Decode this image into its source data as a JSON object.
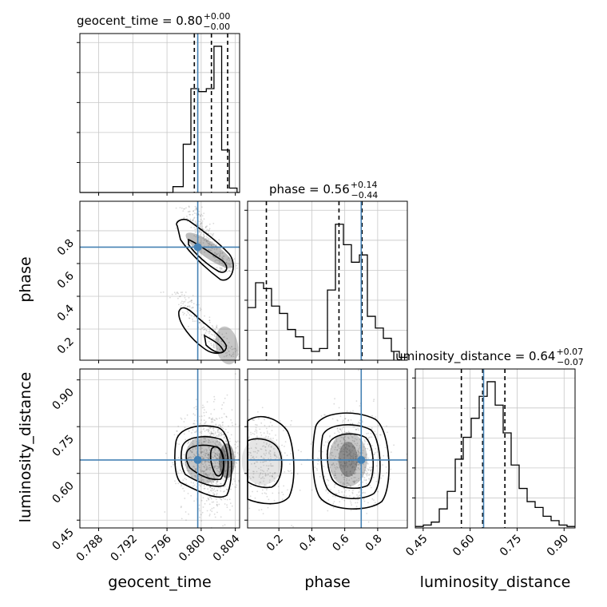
{
  "chart_data": {
    "type": "corner",
    "parameters": [
      "geocent_time",
      "phase",
      "luminosity_distance"
    ],
    "truths": {
      "geocent_time": 0.7996,
      "phase": 0.7,
      "luminosity_distance": 0.643
    },
    "titles": [
      {
        "param": "geocent_time",
        "main": "geocent_time = 0.80",
        "plus": "+0.00",
        "minus": "−0.00"
      },
      {
        "param": "phase",
        "main": "phase = 0.56",
        "plus": "+0.14",
        "minus": "−0.44"
      },
      {
        "param": "luminosity_distance",
        "main": "luminosity_distance = 0.64",
        "plus": "+0.07",
        "minus": "−0.07"
      }
    ],
    "xlabels": [
      "geocent_time",
      "phase",
      "luminosity_distance"
    ],
    "ylabels": [
      "phase",
      "luminosity_distance"
    ],
    "ranges": {
      "geocent_time": [
        0.7858,
        0.8045
      ],
      "phase": [
        0.01,
        0.98
      ],
      "luminosity_distance": [
        0.425,
        0.935
      ]
    },
    "ticks": {
      "geocent_time": {
        "values": [
          0.788,
          0.792,
          0.796,
          0.8,
          0.804
        ],
        "labels": [
          "0.788",
          "0.792",
          "0.796",
          "0.800",
          "0.804"
        ]
      },
      "phase": {
        "values": [
          0.2,
          0.4,
          0.6,
          0.8
        ],
        "labels": [
          "0.2",
          "0.4",
          "0.6",
          "0.8"
        ]
      },
      "luminosity_distance": {
        "values": [
          0.45,
          0.6,
          0.75,
          0.9
        ],
        "labels": [
          "0.45",
          "0.60",
          "0.75",
          "0.90"
        ]
      }
    },
    "quantiles": {
      "geocent_time": [
        0.7992,
        0.8012,
        0.8031
      ],
      "phase": [
        0.124,
        0.565,
        0.705
      ],
      "luminosity_distance": [
        0.572,
        0.64,
        0.711
      ]
    },
    "histograms": {
      "geocent_time": {
        "edges": [
          0.7858,
          0.7967,
          0.7979,
          0.7988,
          0.7997,
          0.8006,
          0.8015,
          0.8024,
          0.8033,
          0.8042,
          0.8045
        ],
        "counts": [
          0,
          0.04,
          0.33,
          0.71,
          0.69,
          0.71,
          1.0,
          0.29,
          0.03,
          0
        ]
      },
      "phase": {
        "edges": [
          0.01,
          0.0585,
          0.107,
          0.1555,
          0.204,
          0.2525,
          0.301,
          0.3495,
          0.398,
          0.4465,
          0.495,
          0.5435,
          0.592,
          0.6405,
          0.689,
          0.7375,
          0.786,
          0.8345,
          0.883,
          0.9315,
          0.98
        ],
        "counts": [
          0.36,
          0.53,
          0.49,
          0.37,
          0.32,
          0.21,
          0.16,
          0.08,
          0.06,
          0.08,
          0.48,
          0.93,
          0.79,
          0.67,
          0.72,
          0.3,
          0.22,
          0.15,
          0.06,
          0.02
        ]
      },
      "luminosity_distance": {
        "edges": [
          0.425,
          0.4505,
          0.476,
          0.5015,
          0.527,
          0.5525,
          0.578,
          0.6035,
          0.629,
          0.6545,
          0.68,
          0.7055,
          0.731,
          0.7565,
          0.782,
          0.8075,
          0.833,
          0.8585,
          0.884,
          0.9095,
          0.935
        ],
        "counts": [
          0.01,
          0.02,
          0.04,
          0.13,
          0.25,
          0.47,
          0.62,
          0.75,
          0.9,
          1.0,
          0.84,
          0.65,
          0.43,
          0.27,
          0.18,
          0.14,
          0.08,
          0.05,
          0.02,
          0.01
        ]
      }
    },
    "grid": true,
    "truth_color": "#4682b4",
    "line_color": "#000000"
  }
}
